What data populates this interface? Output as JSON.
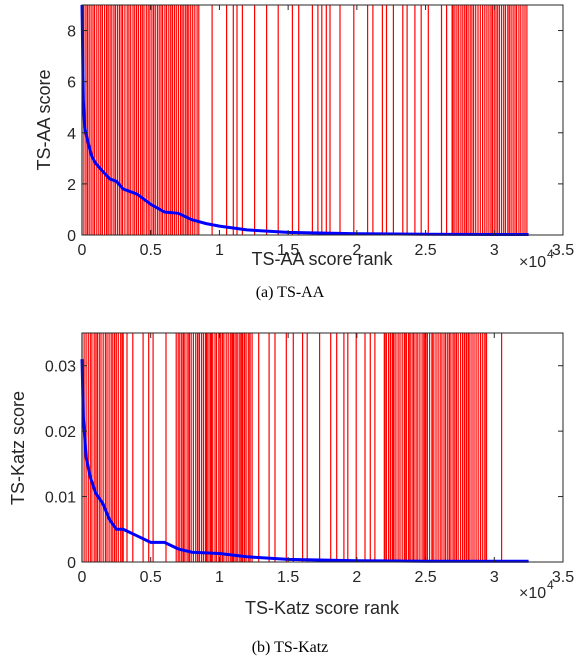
{
  "chart_data": [
    {
      "type": "line",
      "caption": "(a) TS-AA",
      "xlabel": "TS-AA score rank",
      "ylabel": "TS-AA score",
      "xlim": [
        0,
        35000
      ],
      "ylim": [
        0,
        9
      ],
      "x_ticks": [
        0,
        5000,
        10000,
        15000,
        20000,
        25000,
        30000,
        35000
      ],
      "x_tick_labels": [
        "0",
        "0.5",
        "1",
        "1.5",
        "2",
        "2.5",
        "3",
        "3.5"
      ],
      "x_multiplier_label": "×10",
      "x_multiplier_exp": "4",
      "y_ticks": [
        0,
        2,
        4,
        6,
        8
      ],
      "y_tick_labels": [
        "0",
        "2",
        "4",
        "6",
        "8"
      ],
      "grid": false,
      "series": [
        {
          "color": "#0000ff",
          "x": [
            0,
            100,
            200,
            400,
            700,
            1000,
            1500,
            2000,
            2500,
            3000,
            4000,
            5000,
            6000,
            7000,
            8000,
            9000,
            10000,
            12000,
            15000,
            20000,
            25000,
            30000,
            32500
          ],
          "y": [
            9.0,
            5.2,
            4.2,
            3.7,
            3.1,
            2.8,
            2.5,
            2.2,
            2.1,
            1.8,
            1.6,
            1.2,
            0.9,
            0.85,
            0.6,
            0.45,
            0.35,
            0.2,
            0.1,
            0.05,
            0.03,
            0.02,
            0.02
          ]
        }
      ],
      "red_bars": {
        "color": "#ff0000",
        "dense_ranges": [
          [
            0,
            8500
          ],
          [
            27000,
            32400
          ]
        ],
        "sparse_range": [
          8500,
          27000
        ]
      }
    },
    {
      "type": "line",
      "caption": "(b) TS-Katz",
      "xlabel": "TS-Katz score rank",
      "ylabel": "TS-Katz score",
      "xlim": [
        0,
        35000
      ],
      "ylim": [
        0,
        0.035
      ],
      "x_ticks": [
        0,
        5000,
        10000,
        15000,
        20000,
        25000,
        30000,
        35000
      ],
      "x_tick_labels": [
        "0",
        "0.5",
        "1",
        "1.5",
        "2",
        "2.5",
        "3",
        "3.5"
      ],
      "x_multiplier_label": "×10",
      "x_multiplier_exp": "4",
      "y_ticks": [
        0,
        0.01,
        0.02,
        0.03
      ],
      "y_tick_labels": [
        "0",
        "0.01",
        "0.02",
        "0.03"
      ],
      "grid": false,
      "series": [
        {
          "color": "#0000ff",
          "x": [
            0,
            100,
            300,
            600,
            1000,
            1500,
            2000,
            2500,
            3000,
            4000,
            5000,
            6000,
            7000,
            8000,
            10000,
            12000,
            15000,
            20000,
            25000,
            30000,
            32500
          ],
          "y": [
            0.031,
            0.022,
            0.016,
            0.013,
            0.0105,
            0.009,
            0.0065,
            0.005,
            0.005,
            0.004,
            0.003,
            0.003,
            0.002,
            0.0015,
            0.0013,
            0.0008,
            0.0004,
            0.0002,
            0.0001,
            0.0001,
            0.0001
          ]
        }
      ],
      "red_bars": {
        "color": "#ff0000",
        "dense_ranges": [
          [
            0,
            3000
          ],
          [
            7000,
            12500
          ],
          [
            22000,
            29500
          ]
        ],
        "sparse_range": [
          3000,
          31000
        ]
      }
    }
  ]
}
